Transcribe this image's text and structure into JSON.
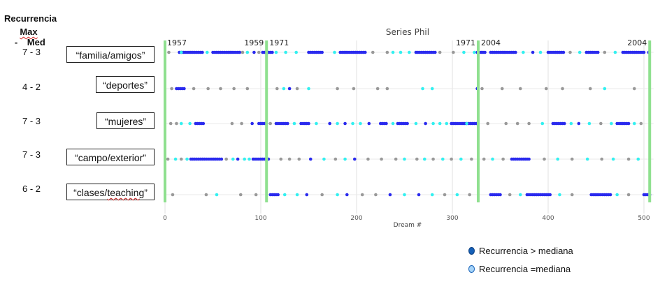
{
  "header": {
    "line1": "Recurrencia",
    "max": "Max",
    "sep": " - ",
    "med": "Med"
  },
  "rows": [
    {
      "recurrence": "7 - 3",
      "label": "“familia/amigos”"
    },
    {
      "recurrence": "4 - 2",
      "label": "“deportes”"
    },
    {
      "recurrence": "7 - 3",
      "label": "“mujeres”"
    },
    {
      "recurrence": "7 - 3",
      "label": "“campo/exterior”"
    },
    {
      "recurrence": "6 - 2",
      "label": "“clases/",
      "label_squiggle": "teaching",
      "label_end": "”"
    }
  ],
  "legend": {
    "above": "Recurrencia >  mediana",
    "equal": "Recurrencia =mediana"
  },
  "colors": {
    "above_median": "#2a2aee",
    "equal_median": "#33f0f0",
    "below_median": "#999999",
    "era_line": "#8fe08f",
    "legend_above": "#1560b8",
    "legend_equal": "#a6d4f8"
  },
  "chart_data": {
    "type": "scatter",
    "title": "Series Phil",
    "xlabel": "Dream #",
    "xlim": [
      0,
      510
    ],
    "xticks": [
      0,
      100,
      200,
      300,
      400,
      500
    ],
    "grid": true,
    "rows": [
      "familia/amigos",
      "deportes",
      "mujeres",
      "campo/exterior",
      "clases/teaching"
    ],
    "period_lines": [
      {
        "x": 0,
        "label": "1957"
      },
      {
        "x": 106,
        "label_left": "1959",
        "label_right": "1971"
      },
      {
        "x": 327,
        "label_left": "1971",
        "label_right": "2004"
      },
      {
        "x": 506,
        "label_left": "2004"
      }
    ],
    "series": [
      {
        "row": "familia/amigos",
        "segments": [
          {
            "x": 4,
            "c": "g"
          },
          {
            "from": 15,
            "to": 40,
            "c": "b"
          },
          {
            "x": 17,
            "c": "c"
          },
          {
            "x": 44,
            "c": "c"
          },
          {
            "from": 50,
            "to": 78,
            "c": "b"
          },
          {
            "x": 81,
            "c": "g"
          },
          {
            "x": 86,
            "c": "c"
          },
          {
            "x": 93,
            "c": "b"
          },
          {
            "x": 98,
            "c": "g"
          },
          {
            "from": 102,
            "to": 112,
            "c": "b"
          },
          {
            "x": 116,
            "c": "c"
          },
          {
            "x": 126,
            "c": "c"
          },
          {
            "x": 137,
            "c": "c"
          },
          {
            "from": 150,
            "to": 165,
            "c": "b"
          },
          {
            "x": 177,
            "c": "c"
          },
          {
            "from": 183,
            "to": 210,
            "c": "b"
          },
          {
            "x": 217,
            "c": "g"
          },
          {
            "x": 232,
            "c": "g"
          },
          {
            "x": 238,
            "c": "c"
          },
          {
            "x": 246,
            "c": "c"
          },
          {
            "x": 255,
            "c": "c"
          },
          {
            "from": 262,
            "to": 282,
            "c": "b"
          },
          {
            "x": 287,
            "c": "g"
          },
          {
            "x": 301,
            "c": "g"
          },
          {
            "x": 312,
            "c": "c"
          },
          {
            "x": 323,
            "c": "c"
          },
          {
            "from": 326,
            "to": 334,
            "c": "b"
          },
          {
            "from": 340,
            "to": 366,
            "c": "b"
          },
          {
            "x": 374,
            "c": "c"
          },
          {
            "x": 384,
            "c": "b"
          },
          {
            "x": 392,
            "c": "c"
          },
          {
            "from": 400,
            "to": 416,
            "c": "b"
          },
          {
            "x": 423,
            "c": "g"
          },
          {
            "x": 433,
            "c": "c"
          },
          {
            "from": 440,
            "to": 452,
            "c": "b"
          },
          {
            "x": 459,
            "c": "g"
          },
          {
            "x": 470,
            "c": "c"
          },
          {
            "from": 478,
            "to": 500,
            "c": "b"
          },
          {
            "x": 505,
            "c": "b"
          }
        ]
      },
      {
        "row": "deportes",
        "segments": [
          {
            "x": 7,
            "c": "g"
          },
          {
            "from": 12,
            "to": 20,
            "c": "b"
          },
          {
            "x": 30,
            "c": "g"
          },
          {
            "x": 45,
            "c": "g"
          },
          {
            "x": 58,
            "c": "g"
          },
          {
            "x": 72,
            "c": "g"
          },
          {
            "x": 86,
            "c": "g"
          },
          {
            "x": 117,
            "c": "g"
          },
          {
            "x": 124,
            "c": "c"
          },
          {
            "x": 130,
            "c": "b"
          },
          {
            "x": 138,
            "c": "g"
          },
          {
            "x": 150,
            "c": "c"
          },
          {
            "x": 180,
            "c": "g"
          },
          {
            "x": 197,
            "c": "g"
          },
          {
            "x": 222,
            "c": "g"
          },
          {
            "x": 232,
            "c": "g"
          },
          {
            "x": 269,
            "c": "c"
          },
          {
            "x": 279,
            "c": "c"
          },
          {
            "x": 326,
            "c": "b"
          },
          {
            "x": 331,
            "c": "g"
          },
          {
            "x": 352,
            "c": "g"
          },
          {
            "x": 371,
            "c": "g"
          },
          {
            "x": 398,
            "c": "g"
          },
          {
            "x": 415,
            "c": "g"
          },
          {
            "x": 444,
            "c": "g"
          },
          {
            "x": 459,
            "c": "c"
          },
          {
            "x": 490,
            "c": "g"
          }
        ]
      },
      {
        "row": "mujeres",
        "segments": [
          {
            "x": 6,
            "c": "g"
          },
          {
            "x": 12,
            "c": "g"
          },
          {
            "x": 17,
            "c": "c"
          },
          {
            "x": 26,
            "c": "c"
          },
          {
            "from": 32,
            "to": 40,
            "c": "b"
          },
          {
            "x": 70,
            "c": "g"
          },
          {
            "x": 80,
            "c": "g"
          },
          {
            "x": 91,
            "c": "b"
          },
          {
            "from": 98,
            "to": 106,
            "c": "b"
          },
          {
            "x": 110,
            "c": "g"
          },
          {
            "from": 116,
            "to": 128,
            "c": "b"
          },
          {
            "x": 135,
            "c": "c"
          },
          {
            "from": 142,
            "to": 150,
            "c": "b"
          },
          {
            "x": 158,
            "c": "c"
          },
          {
            "x": 172,
            "c": "b"
          },
          {
            "x": 180,
            "c": "c"
          },
          {
            "x": 188,
            "c": "b"
          },
          {
            "x": 196,
            "c": "c"
          },
          {
            "x": 204,
            "c": "c"
          },
          {
            "x": 213,
            "c": "b"
          },
          {
            "from": 225,
            "to": 232,
            "c": "b"
          },
          {
            "x": 238,
            "c": "c"
          },
          {
            "from": 243,
            "to": 254,
            "c": "b"
          },
          {
            "x": 262,
            "c": "c"
          },
          {
            "x": 272,
            "c": "b"
          },
          {
            "x": 280,
            "c": "c"
          },
          {
            "x": 287,
            "c": "c"
          },
          {
            "x": 294,
            "c": "c"
          },
          {
            "from": 299,
            "to": 325,
            "c": "b"
          },
          {
            "x": 315,
            "c": "c"
          },
          {
            "x": 337,
            "c": "g"
          },
          {
            "x": 356,
            "c": "g"
          },
          {
            "x": 368,
            "c": "g"
          },
          {
            "x": 380,
            "c": "g"
          },
          {
            "x": 394,
            "c": "c"
          },
          {
            "from": 405,
            "to": 418,
            "c": "b"
          },
          {
            "x": 424,
            "c": "c"
          },
          {
            "x": 432,
            "c": "b"
          },
          {
            "x": 443,
            "c": "c"
          },
          {
            "x": 455,
            "c": "g"
          },
          {
            "x": 466,
            "c": "c"
          },
          {
            "from": 472,
            "to": 484,
            "c": "b"
          },
          {
            "x": 490,
            "c": "c"
          },
          {
            "x": 497,
            "c": "g"
          }
        ]
      },
      {
        "row": "campo/exterior",
        "segments": [
          {
            "x": 3,
            "c": "g"
          },
          {
            "x": 11,
            "c": "c"
          },
          {
            "x": 17,
            "c": "g"
          },
          {
            "x": 23,
            "c": "c"
          },
          {
            "from": 27,
            "to": 60,
            "c": "b"
          },
          {
            "x": 64,
            "c": "g"
          },
          {
            "x": 71,
            "c": "c"
          },
          {
            "x": 76,
            "c": "b"
          },
          {
            "x": 83,
            "c": "c"
          },
          {
            "x": 88,
            "c": "c"
          },
          {
            "from": 92,
            "to": 108,
            "c": "b"
          },
          {
            "x": 121,
            "c": "g"
          },
          {
            "x": 130,
            "c": "g"
          },
          {
            "x": 140,
            "c": "g"
          },
          {
            "x": 152,
            "c": "b"
          },
          {
            "x": 166,
            "c": "c"
          },
          {
            "x": 178,
            "c": "g"
          },
          {
            "x": 188,
            "c": "c"
          },
          {
            "x": 198,
            "c": "b"
          },
          {
            "x": 212,
            "c": "g"
          },
          {
            "x": 226,
            "c": "g"
          },
          {
            "x": 241,
            "c": "g"
          },
          {
            "x": 250,
            "c": "c"
          },
          {
            "x": 263,
            "c": "g"
          },
          {
            "x": 271,
            "c": "c"
          },
          {
            "x": 280,
            "c": "g"
          },
          {
            "x": 290,
            "c": "c"
          },
          {
            "x": 299,
            "c": "g"
          },
          {
            "x": 309,
            "c": "c"
          },
          {
            "x": 320,
            "c": "g"
          },
          {
            "x": 333,
            "c": "g"
          },
          {
            "x": 342,
            "c": "c"
          },
          {
            "x": 353,
            "c": "g"
          },
          {
            "from": 362,
            "to": 380,
            "c": "b"
          },
          {
            "x": 396,
            "c": "g"
          },
          {
            "x": 410,
            "c": "c"
          },
          {
            "x": 425,
            "c": "g"
          },
          {
            "x": 441,
            "c": "c"
          },
          {
            "x": 456,
            "c": "g"
          },
          {
            "x": 468,
            "c": "c"
          },
          {
            "x": 484,
            "c": "g"
          },
          {
            "x": 494,
            "c": "c"
          }
        ]
      },
      {
        "row": "clases/teaching",
        "segments": [
          {
            "x": 8,
            "c": "g"
          },
          {
            "x": 43,
            "c": "g"
          },
          {
            "x": 54,
            "c": "c"
          },
          {
            "x": 79,
            "c": "g"
          },
          {
            "x": 95,
            "c": "g"
          },
          {
            "from": 110,
            "to": 118,
            "c": "b"
          },
          {
            "x": 125,
            "c": "c"
          },
          {
            "x": 138,
            "c": "c"
          },
          {
            "x": 148,
            "c": "b"
          },
          {
            "x": 164,
            "c": "g"
          },
          {
            "x": 180,
            "c": "c"
          },
          {
            "x": 190,
            "c": "b"
          },
          {
            "x": 206,
            "c": "g"
          },
          {
            "x": 220,
            "c": "g"
          },
          {
            "x": 235,
            "c": "b"
          },
          {
            "x": 250,
            "c": "c"
          },
          {
            "x": 265,
            "c": "b"
          },
          {
            "x": 279,
            "c": "c"
          },
          {
            "x": 292,
            "c": "g"
          },
          {
            "x": 305,
            "c": "c"
          },
          {
            "x": 318,
            "c": "g"
          },
          {
            "from": 340,
            "to": 350,
            "c": "b"
          },
          {
            "x": 360,
            "c": "g"
          },
          {
            "x": 371,
            "c": "c"
          },
          {
            "from": 378,
            "to": 402,
            "c": "b"
          },
          {
            "x": 412,
            "c": "c"
          },
          {
            "x": 425,
            "c": "g"
          },
          {
            "from": 445,
            "to": 465,
            "c": "b"
          },
          {
            "x": 472,
            "c": "c"
          },
          {
            "x": 484,
            "c": "g"
          },
          {
            "from": 500,
            "to": 506,
            "c": "b"
          }
        ]
      }
    ]
  }
}
